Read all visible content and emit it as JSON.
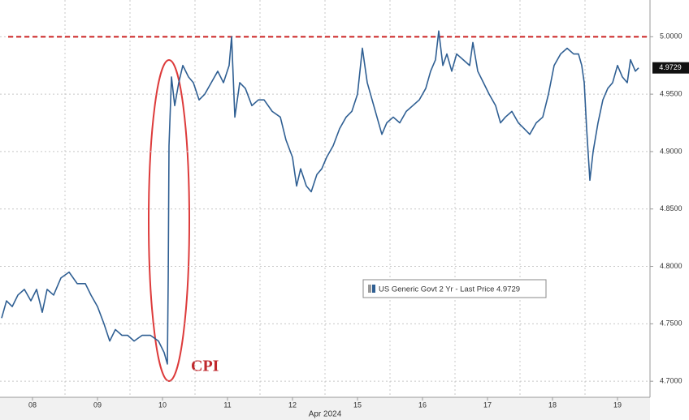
{
  "chart_data": {
    "type": "line",
    "x_label": "Apr 2024",
    "xlim": [
      0,
      10
    ],
    "xticks": [
      {
        "value": 0.5,
        "label": "08"
      },
      {
        "value": 1.5,
        "label": "09"
      },
      {
        "value": 2.5,
        "label": "10"
      },
      {
        "value": 3.5,
        "label": "11"
      },
      {
        "value": 4.5,
        "label": "12"
      },
      {
        "value": 5.5,
        "label": "15"
      },
      {
        "value": 6.5,
        "label": "16"
      },
      {
        "value": 7.5,
        "label": "17"
      },
      {
        "value": 8.5,
        "label": "18"
      },
      {
        "value": 9.5,
        "label": "19"
      }
    ],
    "ylim": [
      4.686,
      5.032
    ],
    "yticks": [
      {
        "value": 4.7,
        "label": "4.7000"
      },
      {
        "value": 4.75,
        "label": "4.7500"
      },
      {
        "value": 4.8,
        "label": "4.8000"
      },
      {
        "value": 4.85,
        "label": "4.8500"
      },
      {
        "value": 4.9,
        "label": "4.9000"
      },
      {
        "value": 4.95,
        "label": "4.9500"
      },
      {
        "value": 5.0,
        "label": "5.0000"
      }
    ],
    "grid": true,
    "reference_line": {
      "value": 5.0,
      "color": "#cc2222"
    },
    "last_price": 4.9729,
    "annotation": "CPI",
    "x": [
      0.025,
      0.1,
      0.188,
      0.275,
      0.375,
      0.475,
      0.563,
      0.65,
      0.725,
      0.825,
      0.938,
      1.063,
      1.188,
      1.313,
      1.4,
      1.5,
      1.6,
      1.688,
      1.775,
      1.875,
      1.963,
      2.063,
      2.188,
      2.313,
      2.438,
      2.525,
      2.575,
      2.588,
      2.6,
      2.638,
      2.688,
      2.75,
      2.813,
      2.9,
      2.975,
      3.063,
      3.15,
      3.25,
      3.35,
      3.438,
      3.525,
      3.563,
      3.613,
      3.688,
      3.775,
      3.875,
      3.975,
      4.063,
      4.188,
      4.313,
      4.4,
      4.5,
      4.563,
      4.625,
      4.713,
      4.788,
      4.875,
      4.95,
      5.025,
      5.125,
      5.225,
      5.325,
      5.413,
      5.5,
      5.575,
      5.65,
      5.725,
      5.8,
      5.875,
      5.95,
      6.05,
      6.15,
      6.25,
      6.35,
      6.45,
      6.55,
      6.625,
      6.7,
      6.75,
      6.813,
      6.875,
      6.95,
      7.025,
      7.125,
      7.225,
      7.275,
      7.35,
      7.438,
      7.525,
      7.625,
      7.7,
      7.775,
      7.875,
      7.975,
      8.063,
      8.15,
      8.25,
      8.35,
      8.438,
      8.525,
      8.625,
      8.725,
      8.825,
      8.9,
      8.95,
      8.988,
      9.025,
      9.075,
      9.125,
      9.2,
      9.275,
      9.35,
      9.425,
      9.5,
      9.575,
      9.65,
      9.7,
      9.775,
      9.825
    ],
    "series": [
      {
        "name": "US Generic Govt 2 Yr - Last Price 4.9729",
        "color": "#2f5f93",
        "values": [
          4.755,
          4.77,
          4.765,
          4.775,
          4.78,
          4.77,
          4.78,
          4.76,
          4.78,
          4.775,
          4.79,
          4.795,
          4.785,
          4.785,
          4.775,
          4.765,
          4.75,
          4.735,
          4.745,
          4.74,
          4.74,
          4.735,
          4.74,
          4.74,
          4.735,
          4.725,
          4.715,
          4.79,
          4.905,
          4.965,
          4.94,
          4.96,
          4.975,
          4.965,
          4.96,
          4.945,
          4.95,
          4.96,
          4.97,
          4.96,
          4.975,
          5.0,
          4.93,
          4.96,
          4.955,
          4.94,
          4.945,
          4.945,
          4.935,
          4.93,
          4.91,
          4.895,
          4.87,
          4.885,
          4.87,
          4.865,
          4.88,
          4.885,
          4.895,
          4.905,
          4.92,
          4.93,
          4.935,
          4.95,
          4.99,
          4.96,
          4.945,
          4.93,
          4.915,
          4.925,
          4.93,
          4.925,
          4.935,
          4.94,
          4.945,
          4.955,
          4.97,
          4.98,
          5.005,
          4.975,
          4.985,
          4.97,
          4.985,
          4.98,
          4.975,
          4.995,
          4.97,
          4.96,
          4.95,
          4.94,
          4.925,
          4.93,
          4.935,
          4.925,
          4.92,
          4.915,
          4.925,
          4.93,
          4.95,
          4.975,
          4.985,
          4.99,
          4.985,
          4.985,
          4.975,
          4.96,
          4.92,
          4.875,
          4.9,
          4.925,
          4.945,
          4.955,
          4.96,
          4.975,
          4.965,
          4.96,
          4.98,
          4.97,
          4.9729
        ]
      }
    ]
  }
}
